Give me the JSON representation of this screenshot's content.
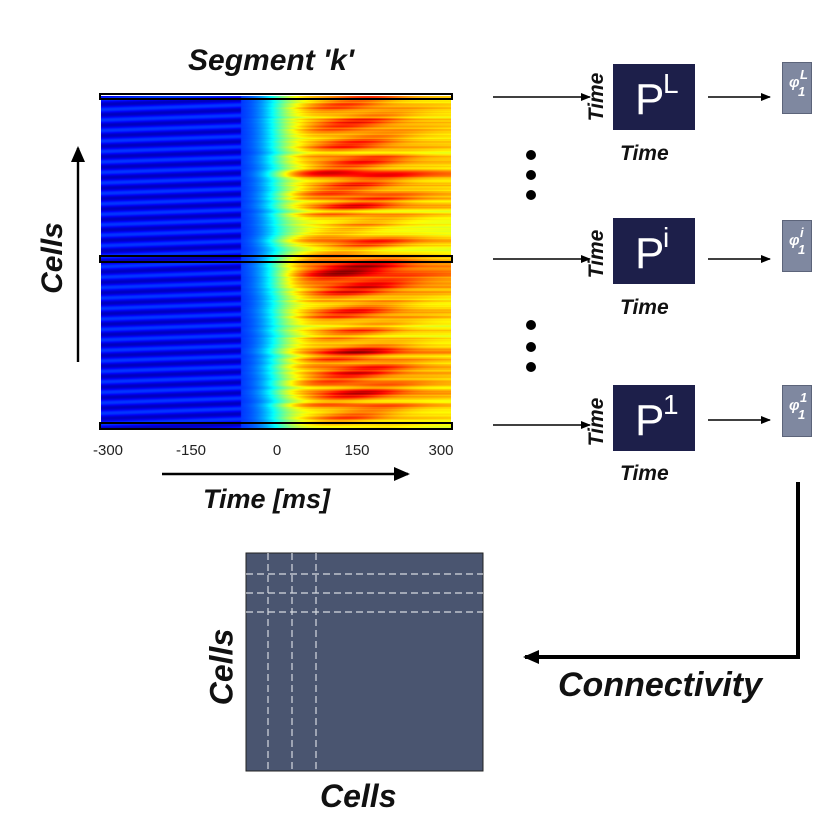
{
  "heatmap": {
    "title": "Segment 'k'",
    "y_label": "Cells",
    "x_label": "Time [ms]",
    "x_ticks": [
      "-300",
      "-150",
      "0",
      "150",
      "300"
    ],
    "colormap": "jet"
  },
  "matrices": [
    {
      "base": "P",
      "sup": "L",
      "x_label": "Time",
      "y_label": "Time",
      "phi": {
        "base": "φ",
        "sup": "L",
        "sub": "1"
      }
    },
    {
      "base": "P",
      "sup": "i",
      "x_label": "Time",
      "y_label": "Time",
      "phi": {
        "base": "φ",
        "sup": "i",
        "sub": "1"
      }
    },
    {
      "base": "P",
      "sup": "1",
      "x_label": "Time",
      "y_label": "Time",
      "phi": {
        "base": "φ",
        "sup": "1",
        "sub": "1"
      }
    }
  ],
  "connectivity": {
    "label": "Connectivity",
    "x_label": "Cells",
    "y_label": "Cells"
  },
  "colors": {
    "matrix_fill": "#1d1f4a",
    "phi_fill": "#7f88a0",
    "connectivity_fill": "#4a5570",
    "grid_line": "#d6d9e0"
  }
}
